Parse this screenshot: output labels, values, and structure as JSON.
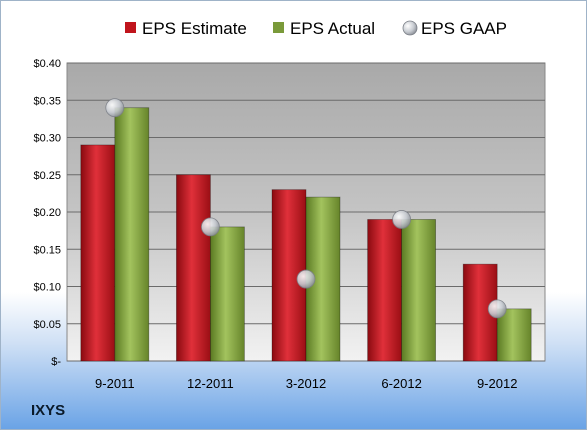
{
  "company": "IXYS",
  "chart_data": {
    "type": "bar",
    "categories": [
      "9-2011",
      "12-2011",
      "3-2012",
      "6-2012",
      "9-2012"
    ],
    "series": [
      {
        "name": "EPS Estimate",
        "kind": "bar",
        "color": "#c0141c",
        "values": [
          0.29,
          0.25,
          0.23,
          0.19,
          0.13
        ]
      },
      {
        "name": "EPS Actual",
        "kind": "bar",
        "color": "#7a9a3a",
        "values": [
          0.34,
          0.18,
          0.22,
          0.19,
          0.07
        ]
      },
      {
        "name": "EPS GAAP",
        "kind": "marker",
        "color": "#b8bcc4",
        "values": [
          0.34,
          0.18,
          0.11,
          0.19,
          0.07
        ]
      }
    ],
    "ylim": [
      0,
      0.4
    ],
    "yticks": [
      0,
      0.05,
      0.1,
      0.15,
      0.2,
      0.25,
      0.3,
      0.35,
      0.4
    ],
    "ytick_labels": [
      "$-",
      "$0.05",
      "$0.10",
      "$0.15",
      "$0.20",
      "$0.25",
      "$0.30",
      "$0.35",
      "$0.40"
    ],
    "grid": true,
    "legend_position": "top"
  }
}
